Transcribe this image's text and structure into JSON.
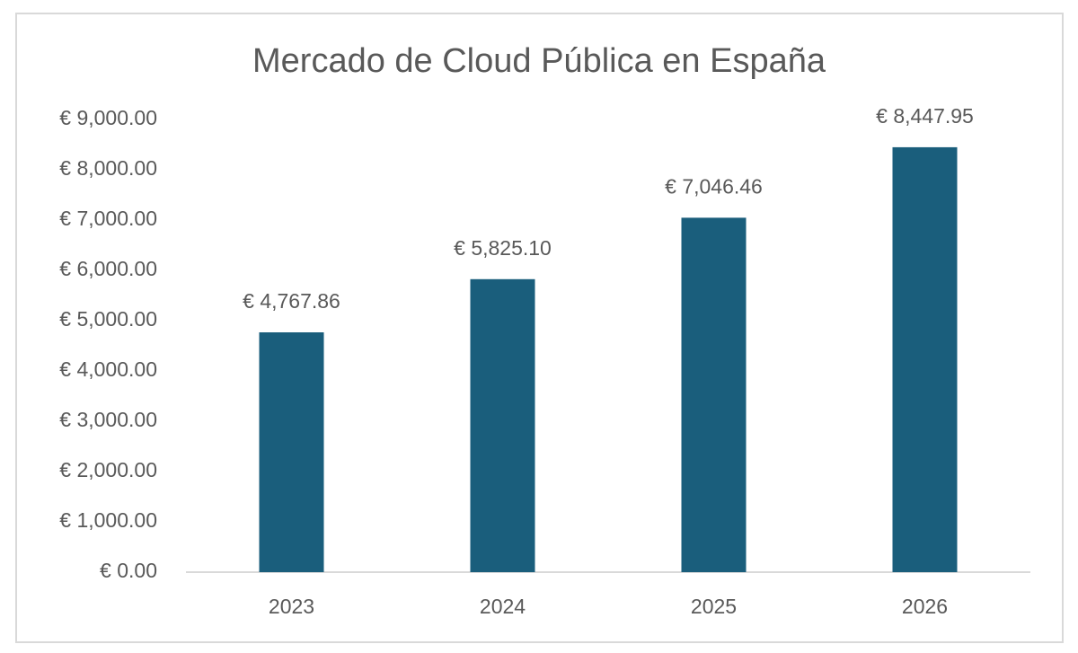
{
  "chart_data": {
    "type": "bar",
    "title": "Mercado de Cloud Pública en España",
    "categories": [
      "2023",
      "2024",
      "2025",
      "2026"
    ],
    "values": [
      4767.86,
      5825.1,
      7046.46,
      8447.95
    ],
    "value_labels": [
      "€ 4,767.86",
      "€ 5,825.10",
      "€ 7,046.46",
      "€ 8,447.95"
    ],
    "color": "#1a5e7c",
    "ylim": [
      0,
      9000
    ],
    "yticks": [
      {
        "value": 0,
        "label": "€ 0.00"
      },
      {
        "value": 1000,
        "label": "€ 1,000.00"
      },
      {
        "value": 2000,
        "label": "€ 2,000.00"
      },
      {
        "value": 3000,
        "label": "€ 3,000.00"
      },
      {
        "value": 4000,
        "label": "€ 4,000.00"
      },
      {
        "value": 5000,
        "label": "€ 5,000.00"
      },
      {
        "value": 6000,
        "label": "€ 6,000.00"
      },
      {
        "value": 7000,
        "label": "€ 7,000.00"
      },
      {
        "value": 8000,
        "label": "€ 8,000.00"
      },
      {
        "value": 9000,
        "label": "€ 9,000.00"
      }
    ],
    "grid": false
  }
}
